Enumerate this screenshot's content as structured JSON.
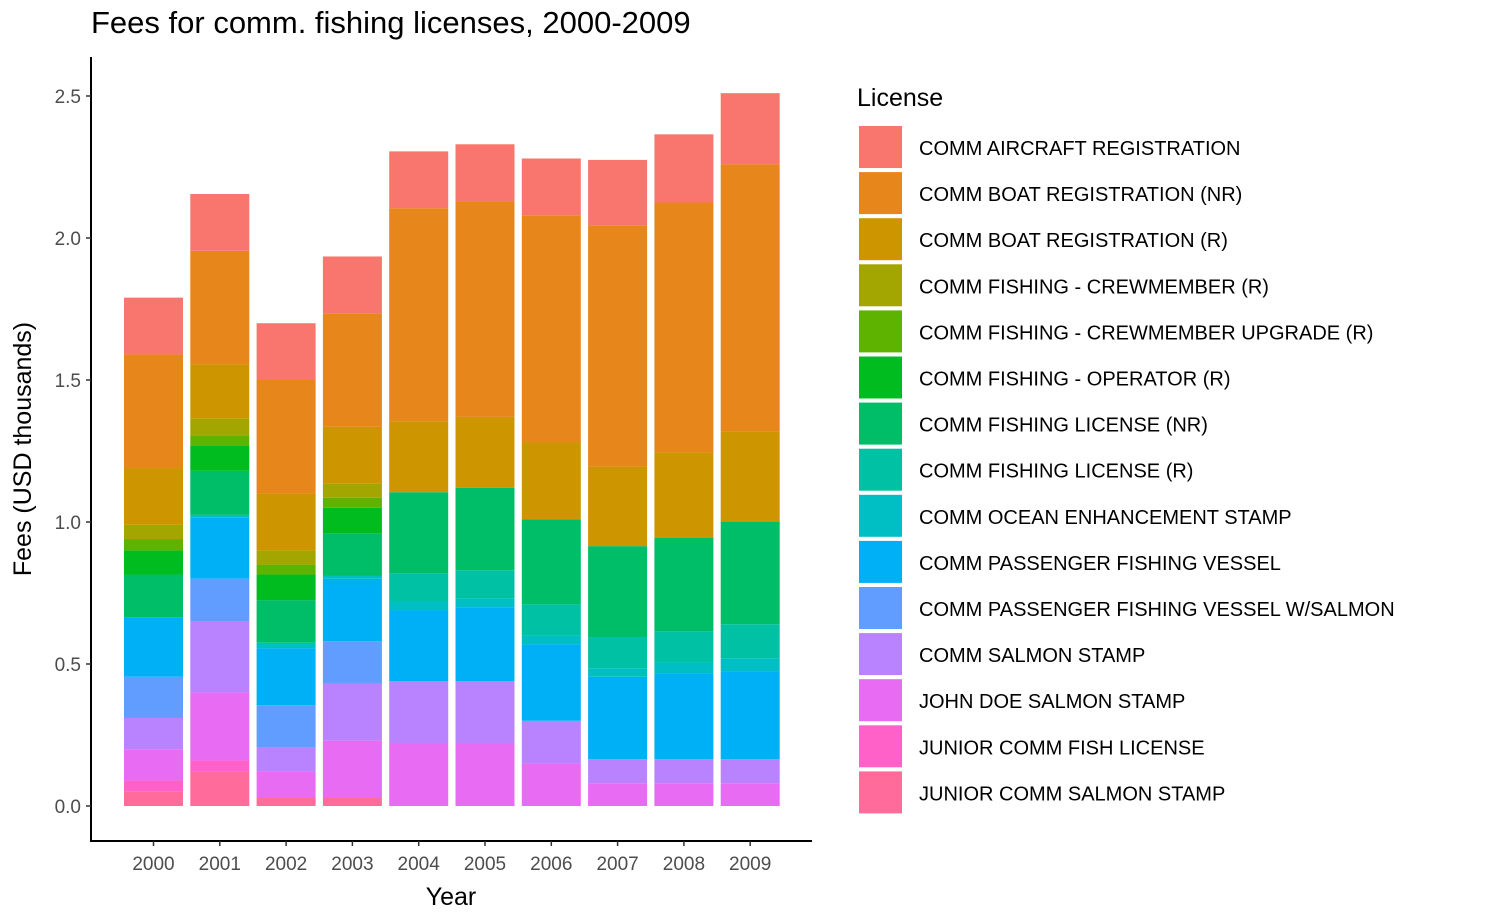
{
  "chart_data": {
    "type": "bar",
    "stacked": true,
    "title": "Fees for comm. fishing licenses, 2000-2009",
    "xlabel": "Year",
    "ylabel": "Fees (USD thousands)",
    "ylim": [
      0,
      2.6
    ],
    "yticks": [
      0.0,
      0.5,
      1.0,
      1.5,
      2.0,
      2.5
    ],
    "ytick_labels": [
      "0.0",
      "0.5",
      "1.0",
      "1.5",
      "2.0",
      "2.5"
    ],
    "grid": false,
    "legend_title": "License",
    "legend_position": "right",
    "categories": [
      "2000",
      "2001",
      "2002",
      "2003",
      "2004",
      "2005",
      "2006",
      "2007",
      "2008",
      "2009"
    ],
    "series": [
      {
        "name": "JUNIOR COMM SALMON STAMP",
        "color": "#FF6C9C",
        "values": [
          0.05,
          0.12,
          0.03,
          0.03,
          0.0,
          0.0,
          0.0,
          0.0,
          0.0,
          0.0
        ]
      },
      {
        "name": "JUNIOR COMM FISH LICENSE",
        "color": "#FF61C9",
        "values": [
          0.04,
          0.04,
          0.0,
          0.0,
          0.0,
          0.0,
          0.0,
          0.0,
          0.0,
          0.0
        ]
      },
      {
        "name": "JOHN DOE SALMON STAMP",
        "color": "#E76BF3",
        "values": [
          0.11,
          0.24,
          0.09,
          0.2,
          0.22,
          0.22,
          0.15,
          0.08,
          0.08,
          0.08
        ]
      },
      {
        "name": "COMM SALMON STAMP",
        "color": "#B983FF",
        "values": [
          0.11,
          0.25,
          0.085,
          0.2,
          0.22,
          0.22,
          0.15,
          0.085,
          0.085,
          0.085
        ]
      },
      {
        "name": "COMM PASSENGER FISHING VESSEL W/SALMON",
        "color": "#619CFF",
        "values": [
          0.145,
          0.15,
          0.15,
          0.15,
          0.0,
          0.0,
          0.0,
          0.0,
          0.0,
          0.0
        ]
      },
      {
        "name": "COMM PASSENGER FISHING VESSEL",
        "color": "#00B0F6",
        "values": [
          0.21,
          0.215,
          0.2,
          0.22,
          0.25,
          0.26,
          0.27,
          0.29,
          0.3,
          0.31
        ]
      },
      {
        "name": "COMM OCEAN ENHANCEMENT STAMP",
        "color": "#00BFC4",
        "values": [
          0.0,
          0.01,
          0.02,
          0.01,
          0.03,
          0.03,
          0.03,
          0.03,
          0.04,
          0.045
        ]
      },
      {
        "name": "COMM FISHING LICENSE (R)",
        "color": "#00C1A3",
        "values": [
          0.0,
          0.0,
          0.0,
          0.0,
          0.1,
          0.1,
          0.11,
          0.11,
          0.11,
          0.12
        ]
      },
      {
        "name": "COMM FISHING LICENSE (NR)",
        "color": "#00BE67",
        "values": [
          0.15,
          0.155,
          0.15,
          0.15,
          0.285,
          0.29,
          0.3,
          0.32,
          0.33,
          0.36
        ]
      },
      {
        "name": "COMM FISHING - OPERATOR (R)",
        "color": "#00BC1F",
        "values": [
          0.085,
          0.09,
          0.09,
          0.09,
          0.0,
          0.0,
          0.0,
          0.0,
          0.0,
          0.0
        ]
      },
      {
        "name": "COMM FISHING - CREWMEMBER UPGRADE (R)",
        "color": "#5EB300",
        "values": [
          0.04,
          0.035,
          0.035,
          0.035,
          0.0,
          0.0,
          0.0,
          0.0,
          0.0,
          0.0
        ]
      },
      {
        "name": "COMM FISHING - CREWMEMBER (R)",
        "color": "#A3A500",
        "values": [
          0.05,
          0.06,
          0.05,
          0.05,
          0.0,
          0.0,
          0.0,
          0.0,
          0.0,
          0.0
        ]
      },
      {
        "name": "COMM BOAT REGISTRATION (R)",
        "color": "#CD9600",
        "values": [
          0.2,
          0.19,
          0.2,
          0.2,
          0.25,
          0.25,
          0.27,
          0.28,
          0.3,
          0.32
        ]
      },
      {
        "name": "COMM BOAT REGISTRATION (NR)",
        "color": "#E7861B",
        "values": [
          0.4,
          0.4,
          0.4,
          0.4,
          0.75,
          0.76,
          0.8,
          0.85,
          0.88,
          0.94
        ]
      },
      {
        "name": "COMM AIRCRAFT REGISTRATION",
        "color": "#F8766D",
        "values": [
          0.2,
          0.2,
          0.2,
          0.2,
          0.2,
          0.2,
          0.2,
          0.23,
          0.24,
          0.25
        ]
      }
    ]
  }
}
